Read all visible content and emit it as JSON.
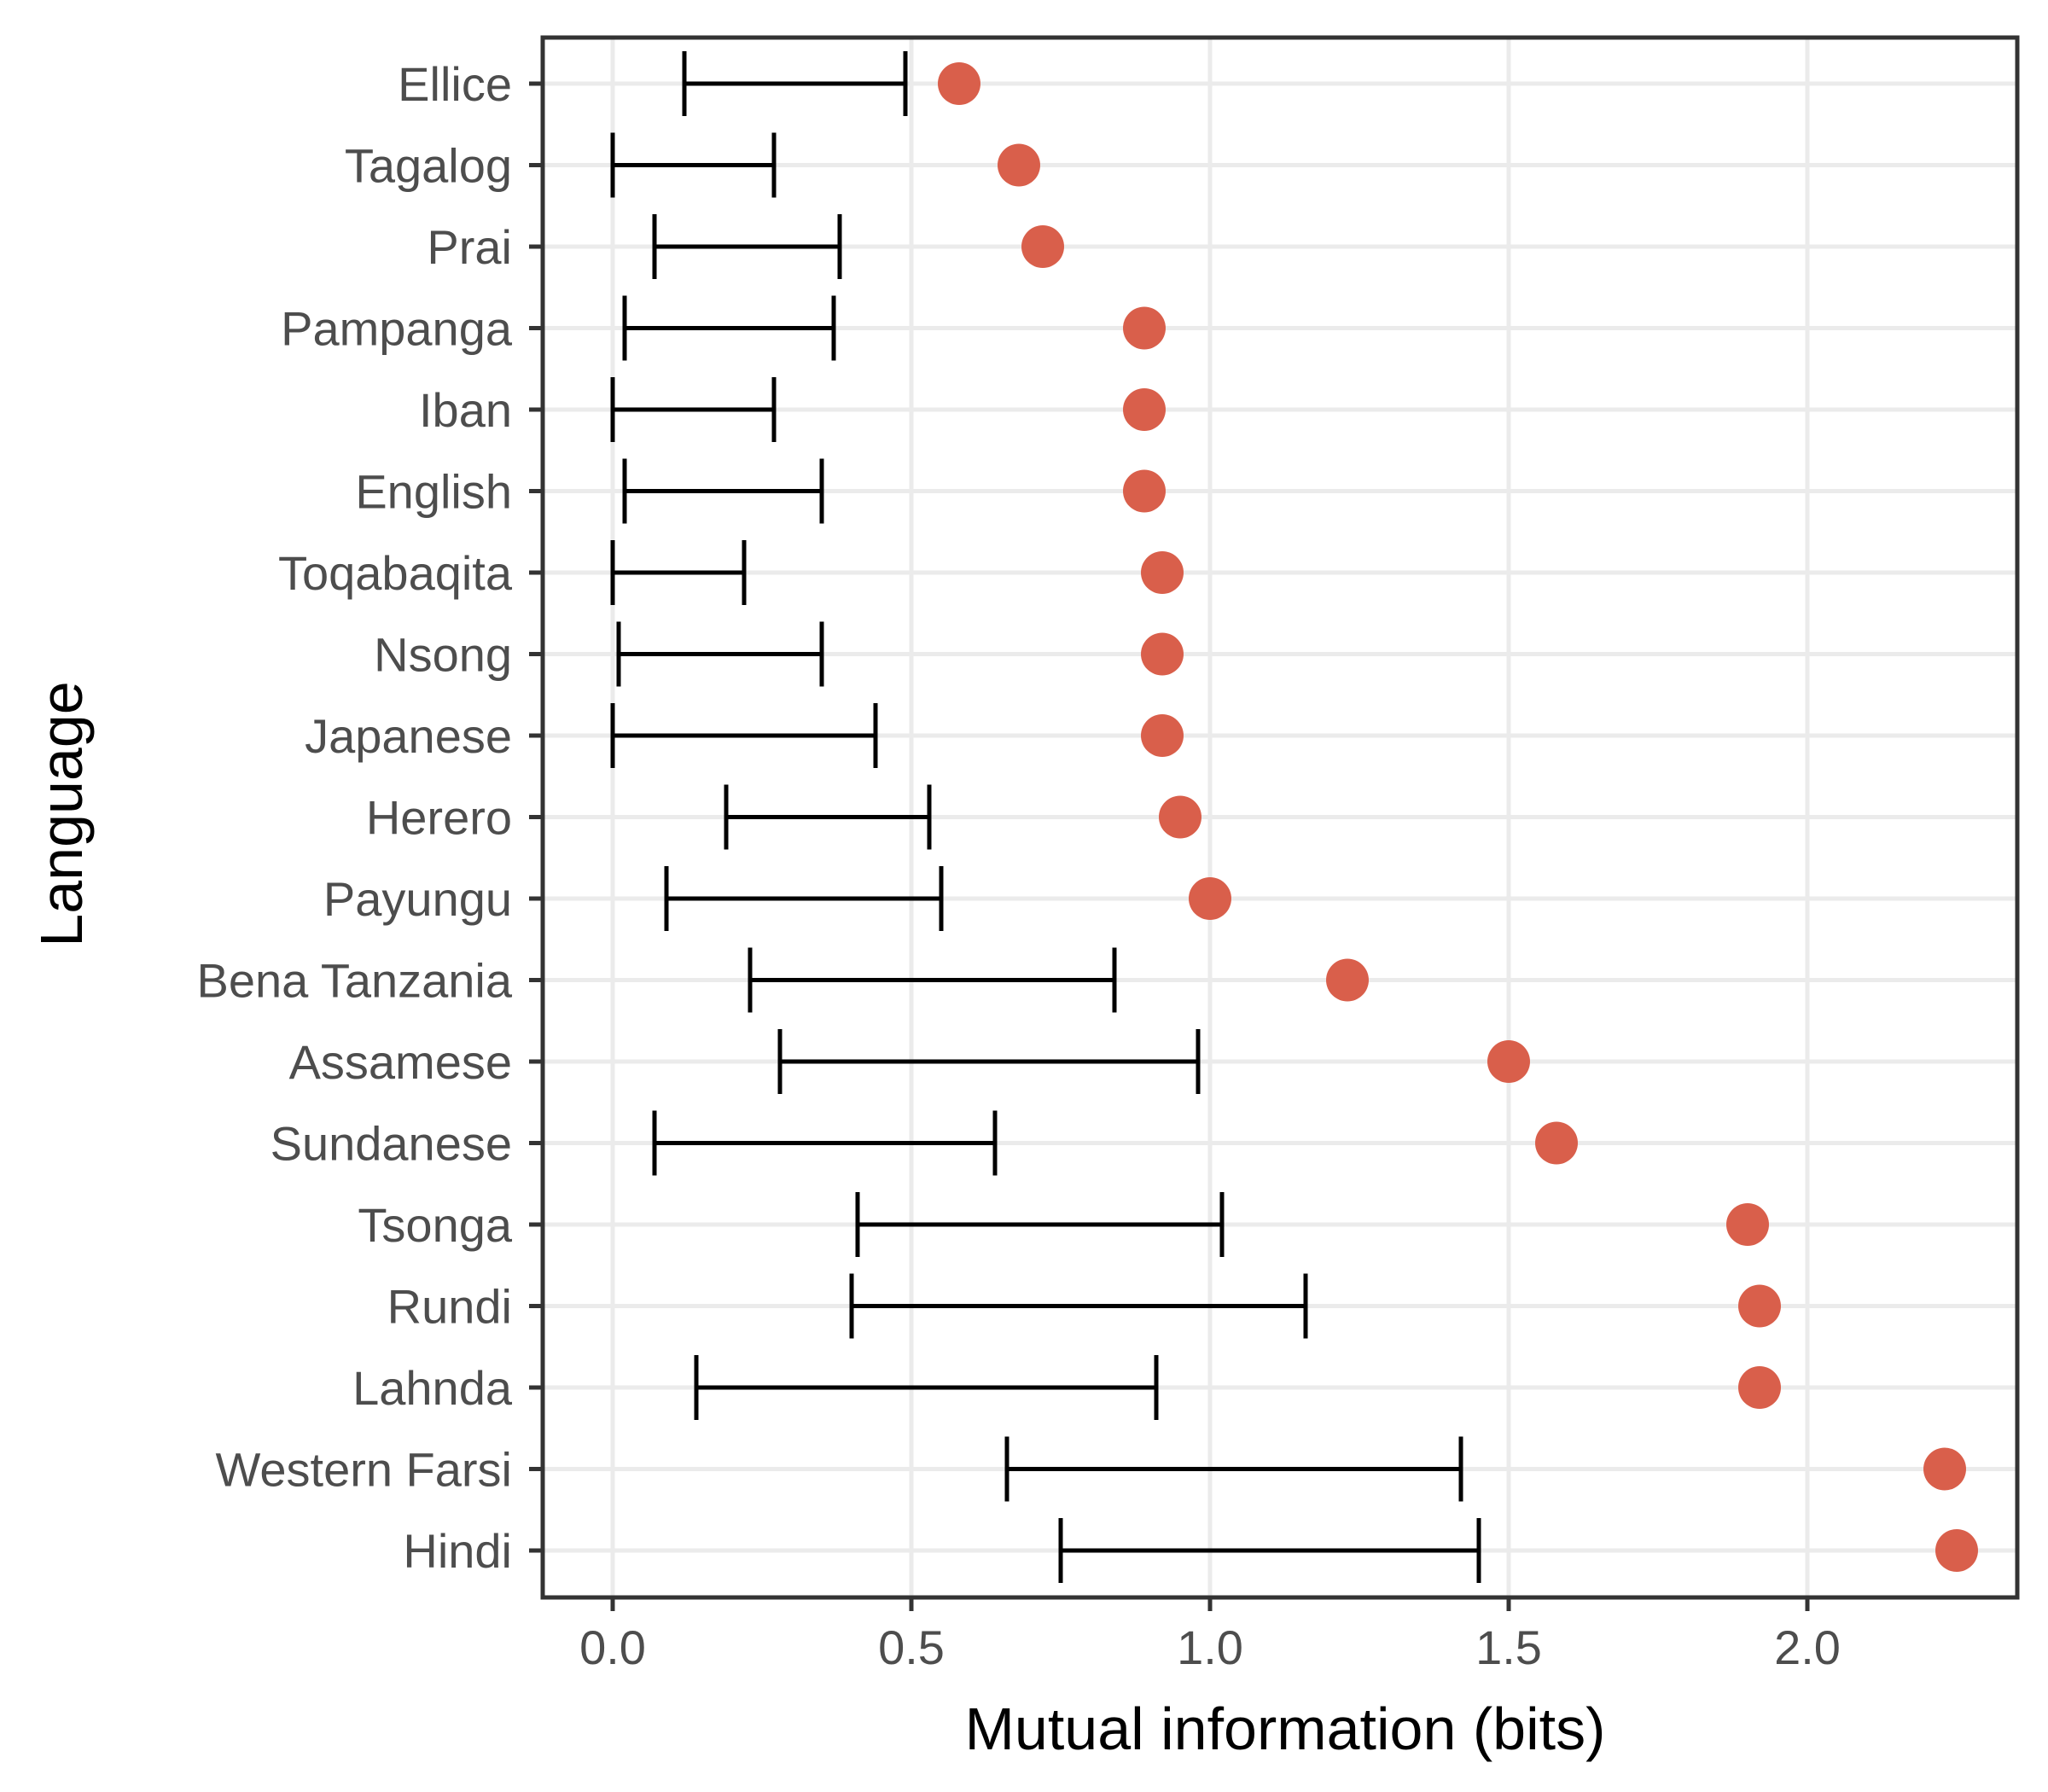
{
  "chart_data": {
    "type": "scatter",
    "xlabel": "Mutual information (bits)",
    "ylabel": "Language",
    "xlim": [
      -0.11,
      2.36
    ],
    "xticks": [
      "0.0",
      "0.5",
      "1.0",
      "1.5",
      "2.0"
    ],
    "xtick_values": [
      0,
      0.5,
      1.0,
      1.5,
      2.0
    ],
    "grid": true,
    "point_color": "#d95f4b",
    "errorbar_color": "#000000",
    "categories": [
      "Ellice",
      "Tagalog",
      "Prai",
      "Pampanga",
      "Iban",
      "English",
      "Toqabaqita",
      "Nsong",
      "Japanese",
      "Herero",
      "Payungu",
      "Bena Tanzania ",
      "Assamese",
      "Sundanese",
      "Tsonga",
      "Rundi",
      "Lahnda",
      "Western Farsi",
      "Hindi"
    ],
    "points": [
      0.58,
      0.68,
      0.72,
      0.89,
      0.89,
      0.89,
      0.92,
      0.92,
      0.92,
      0.95,
      1.0,
      1.23,
      1.5,
      1.58,
      1.9,
      1.92,
      1.92,
      2.23,
      2.25
    ],
    "interval_low": [
      0.12,
      0.0,
      0.07,
      0.02,
      0.0,
      0.02,
      0.0,
      0.01,
      0.0,
      0.19,
      0.09,
      0.23,
      0.28,
      0.07,
      0.41,
      0.4,
      0.14,
      0.66,
      0.75
    ],
    "interval_high": [
      0.49,
      0.27,
      0.38,
      0.37,
      0.27,
      0.35,
      0.22,
      0.35,
      0.44,
      0.53,
      0.55,
      0.84,
      0.98,
      0.64,
      1.02,
      1.16,
      0.91,
      1.42,
      1.45
    ]
  }
}
